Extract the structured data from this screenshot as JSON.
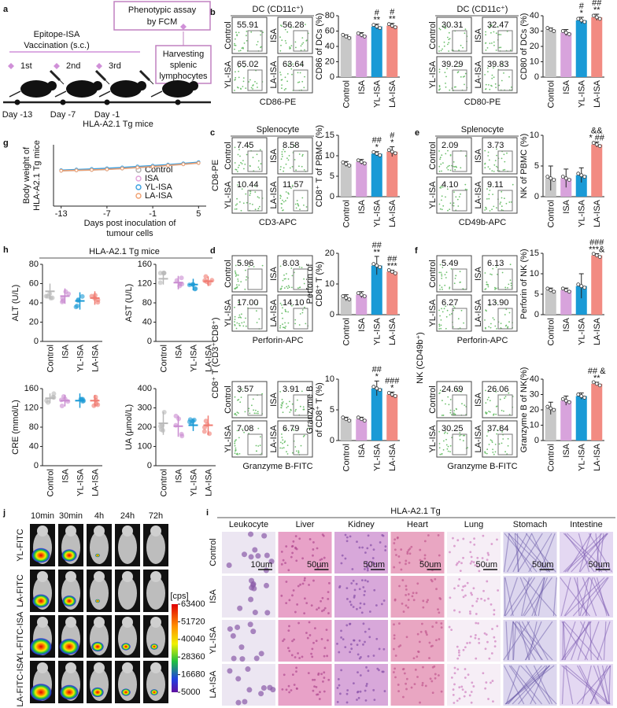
{
  "a": {
    "label": "a",
    "box1": [
      "Phenotypic assay",
      "by FCM"
    ],
    "vaccination": [
      "Epitope-ISA",
      "Vaccination (s.c.)"
    ],
    "box2": [
      "Harvesting",
      "splenic",
      "lymphocytes"
    ],
    "doses": [
      "1st",
      "2nd",
      "3rd"
    ],
    "days": [
      "Day -13",
      "Day -7",
      "Day -1"
    ],
    "mice": "HLA-A2.1 Tg mice"
  },
  "flows": [
    {
      "label": "b",
      "title": "DC (CD11c⁺)",
      "groups": [
        "Control",
        "ISA",
        "YL-ISA",
        "LA-ISA"
      ],
      "percent": [
        "55.91",
        "56.28",
        "65.02",
        "63.64"
      ],
      "xlabel": "CD86-PE"
    },
    {
      "title": "DC (CD11c⁺)",
      "groups": [
        "Control",
        "ISA",
        "YL-ISA",
        "LA-ISA"
      ],
      "percent": [
        "30.31",
        "32.47",
        "39.29",
        "39.83"
      ],
      "xlabel": "CD80-PE"
    },
    {
      "label": "c",
      "title": "Splenocyte",
      "ylabel": "CD8-PE",
      "groups": [
        "Control",
        "ISA",
        "YL-ISA",
        "LA-ISA"
      ],
      "percent": [
        "7.45",
        "8.58",
        "10.44",
        "11.57"
      ],
      "xlabel": "CD3-APC"
    },
    {
      "label": "e",
      "title": "Splenocyte",
      "groups": [
        "Control",
        "ISA",
        "YL-ISA",
        "LA-ISA"
      ],
      "percent": [
        "2.09",
        "3.73",
        "4.10",
        "9.11"
      ],
      "xlabel": "CD49b-APC"
    },
    {
      "label": "d",
      "ylabel": "CD8⁺ T (CD3⁺CD8⁺)",
      "groups": [
        "Control",
        "ISA",
        "YL-ISA",
        "LA-ISA"
      ],
      "percent": [
        "5.96",
        "8.03",
        "17.00",
        "14.10"
      ],
      "xlabel": "Perforin-APC"
    },
    {
      "groups": [
        "Control",
        "ISA",
        "YL-ISA",
        "LA-ISA"
      ],
      "percent": [
        "3.57",
        "3.91",
        "7.08",
        "6.79"
      ],
      "xlabel": "Granzyme B-FITC"
    },
    {
      "label": "f",
      "ylabel": "NK (CD49b⁺)",
      "groups": [
        "Control",
        "ISA",
        "YL-ISA",
        "LA-ISA"
      ],
      "percent": [
        "5.49",
        "6.13",
        "6.27",
        "13.90"
      ],
      "xlabel": "Perforin-APC"
    },
    {
      "groups": [
        "Control",
        "ISA",
        "YL-ISA",
        "LA-ISA"
      ],
      "percent": [
        "24.69",
        "26.06",
        "30.25",
        "37.84"
      ],
      "xlabel": "Granzyme B-FITC"
    }
  ],
  "bars": [
    {
      "type": "bar",
      "ylabel": [
        "CD86 of DCs (%)"
      ],
      "categories": [
        "Control",
        "ISA",
        "YL-ISA",
        "LA-ISA"
      ],
      "values": [
        53,
        55,
        66,
        67
      ],
      "errors": [
        2,
        3,
        3,
        3
      ],
      "ylim": [
        0,
        80
      ],
      "yticks": [
        0,
        20,
        40,
        60,
        80
      ],
      "colors": [
        "#c8c8c8",
        "#d8a3dc",
        "#1a9ad6",
        "#f28b82"
      ],
      "sig": [
        [],
        [],
        [
          "#",
          "**"
        ],
        [
          "#",
          "**"
        ]
      ]
    },
    {
      "type": "bar",
      "ylabel": [
        "CD80 of DCs (%)"
      ],
      "categories": [
        "Control",
        "ISA",
        "YL-ISA",
        "LA-ISA"
      ],
      "values": [
        31,
        29,
        37,
        39
      ],
      "errors": [
        1,
        2,
        2,
        2
      ],
      "ylim": [
        0,
        40
      ],
      "yticks": [
        0,
        10,
        20,
        30,
        40
      ],
      "colors": [
        "#c8c8c8",
        "#d8a3dc",
        "#1a9ad6",
        "#f28b82"
      ],
      "sig": [
        [],
        [],
        [
          "#",
          "*"
        ],
        [
          "##",
          "**"
        ]
      ]
    },
    {
      "type": "bar",
      "ylabel": [
        "CD8⁺ T of PBMC (%)"
      ],
      "categories": [
        "Control",
        "ISA",
        "YL-ISA",
        "LA-ISA"
      ],
      "values": [
        8,
        8.5,
        10.5,
        11
      ],
      "errors": [
        0.6,
        0.6,
        0.5,
        1.2
      ],
      "ylim": [
        0,
        15
      ],
      "yticks": [
        0,
        5,
        10,
        15
      ],
      "colors": [
        "#c8c8c8",
        "#d8a3dc",
        "#1a9ad6",
        "#f28b82"
      ],
      "sig": [
        [],
        [],
        [
          "##",
          "*"
        ],
        [
          "#",
          "*"
        ]
      ]
    },
    {
      "type": "bar",
      "ylabel": [
        "NK of PBMC (%)"
      ],
      "categories": [
        "Control",
        "ISA",
        "YL-ISA",
        "LA-ISA"
      ],
      "values": [
        3,
        3,
        3.5,
        8.5
      ],
      "errors": [
        2,
        1.5,
        1.2,
        0.4
      ],
      "ylim": [
        0,
        10
      ],
      "yticks": [
        0,
        5,
        10
      ],
      "colors": [
        "#c8c8c8",
        "#d8a3dc",
        "#1a9ad6",
        "#f28b82"
      ],
      "sig": [
        [],
        [],
        [],
        [
          "&&",
          "* ##"
        ]
      ]
    },
    {
      "type": "bar",
      "ylabel": [
        "Perforin of",
        "CD8⁺ T (%)"
      ],
      "categories": [
        "Control",
        "ISA",
        "YL-ISA",
        "LA-ISA"
      ],
      "values": [
        5.5,
        6.5,
        16,
        14
      ],
      "errors": [
        1,
        1,
        3,
        0.5
      ],
      "ylim": [
        0,
        20
      ],
      "yticks": [
        0,
        10,
        20
      ],
      "colors": [
        "#c8c8c8",
        "#d8a3dc",
        "#1a9ad6",
        "#f28b82"
      ],
      "sig": [
        [],
        [],
        [
          "##",
          "**"
        ],
        [
          "##",
          "***"
        ]
      ]
    },
    {
      "type": "bar",
      "ylabel": [
        "Granzyme B",
        "of CD8⁺ T (%)"
      ],
      "categories": [
        "Control",
        "ISA",
        "YL-ISA",
        "LA-ISA"
      ],
      "values": [
        3.5,
        3.5,
        8.5,
        7.5
      ],
      "errors": [
        0.3,
        0.3,
        1.2,
        0.4
      ],
      "ylim": [
        0,
        10
      ],
      "yticks": [
        0,
        5,
        10
      ],
      "colors": [
        "#c8c8c8",
        "#d8a3dc",
        "#1a9ad6",
        "#f28b82"
      ],
      "sig": [
        [],
        [],
        [
          "##",
          "*"
        ],
        [
          "###",
          "*"
        ]
      ]
    },
    {
      "type": "bar",
      "ylabel": [
        "Perforin of NK (%)"
      ],
      "categories": [
        "Control",
        "ISA",
        "YL-ISA",
        "LA-ISA"
      ],
      "values": [
        6,
        6,
        7,
        14.5
      ],
      "errors": [
        0.5,
        0.5,
        3,
        0.4
      ],
      "ylim": [
        0,
        15
      ],
      "yticks": [
        0,
        5,
        10,
        15
      ],
      "colors": [
        "#c8c8c8",
        "#d8a3dc",
        "#1a9ad6",
        "#f28b82"
      ],
      "sig": [
        [],
        [],
        [],
        [
          "###",
          "***&"
        ]
      ]
    },
    {
      "type": "bar",
      "ylabel": [
        "Granzyme B of NK(%)"
      ],
      "categories": [
        "Control",
        "ISA",
        "YL-ISA",
        "LA-ISA"
      ],
      "values": [
        21,
        26,
        29,
        37
      ],
      "errors": [
        4,
        3,
        2,
        1
      ],
      "ylim": [
        0,
        40
      ],
      "yticks": [
        0,
        10,
        20,
        30,
        40
      ],
      "colors": [
        "#c8c8c8",
        "#d8a3dc",
        "#1a9ad6",
        "#f28b82"
      ],
      "sig": [
        [],
        [],
        [],
        [
          "## &",
          "**"
        ]
      ]
    }
  ],
  "g": {
    "label": "g",
    "type": "line",
    "ylabel": [
      "Body weight of",
      "HLA-A2.1 Tg mice"
    ],
    "xlabel": [
      "Days post inoculation of",
      "tumour cells"
    ],
    "x": [
      -13,
      -11,
      -9,
      -7,
      -5,
      -3,
      -1,
      1,
      3,
      5
    ],
    "xlim": [
      -14,
      6
    ],
    "xticks": [
      -13,
      -7,
      -1,
      5
    ],
    "ylim": [
      0,
      30
    ],
    "series": [
      {
        "name": "Control",
        "color": "#b0b0b0",
        "values": [
          17.2,
          17.4,
          17.6,
          17.9,
          18.3,
          18.8,
          19.2,
          19.8,
          20.4,
          21.0
        ]
      },
      {
        "name": "ISA",
        "color": "#e0a0d8",
        "values": [
          17.4,
          17.6,
          17.9,
          18.1,
          18.6,
          19.0,
          19.5,
          20.0,
          20.6,
          21.2
        ]
      },
      {
        "name": "YL-ISA",
        "color": "#3aa0e0",
        "values": [
          17.6,
          17.9,
          18.2,
          18.5,
          18.9,
          19.4,
          19.8,
          20.3,
          20.9,
          21.5
        ]
      },
      {
        "name": "LA-ISA",
        "color": "#f0a070",
        "values": [
          17.3,
          17.5,
          17.7,
          18.0,
          18.4,
          18.9,
          19.3,
          19.9,
          20.5,
          21.1
        ]
      }
    ]
  },
  "h": {
    "label": "h",
    "title": "HLA-A2.1 Tg mice",
    "colors": [
      "#b8b8b8",
      "#c98bd0",
      "#1a9ad6",
      "#f07a70"
    ],
    "plots": [
      {
        "type": "dot",
        "ylabel": "ALT (U/L)",
        "categories": [
          "Control",
          "ISA",
          "YL-ISA",
          "LA-ISA"
        ],
        "means": [
          52,
          47,
          42,
          45
        ],
        "sd": [
          8,
          8,
          9,
          7
        ],
        "ylim": [
          0,
          80
        ],
        "yticks": [
          0,
          20,
          40,
          60,
          80
        ]
      },
      {
        "type": "dot",
        "ylabel": "AST (U/L)",
        "categories": [
          "Control",
          "ISA",
          "YL-ISA",
          "LA-ISA"
        ],
        "means": [
          130,
          122,
          118,
          125
        ],
        "sd": [
          12,
          14,
          12,
          10
        ],
        "ylim": [
          0,
          160
        ],
        "yticks": [
          0,
          40,
          80,
          120,
          160
        ]
      },
      {
        "type": "dot",
        "ylabel": "CRE (mmol/L)",
        "categories": [
          "Control",
          "ISA",
          "YL-ISA",
          "LA-ISA"
        ],
        "means": [
          140,
          135,
          135,
          135
        ],
        "sd": [
          10,
          12,
          15,
          12
        ],
        "ylim": [
          0,
          160
        ],
        "yticks": [
          0,
          40,
          80,
          120,
          160
        ]
      },
      {
        "type": "dot",
        "ylabel": "UA (μmol/L)",
        "categories": [
          "Control",
          "ISA",
          "YL-ISA",
          "LA-ISA"
        ],
        "means": [
          220,
          205,
          210,
          210
        ],
        "sd": [
          60,
          55,
          30,
          50
        ],
        "ylim": [
          0,
          400
        ],
        "yticks": [
          0,
          100,
          200,
          300,
          400
        ]
      }
    ]
  },
  "j": {
    "label": "j",
    "times": [
      "10min",
      "30min",
      "4h",
      "24h",
      "72h"
    ],
    "rows": [
      "YL-FITC",
      "LA-FITC",
      "YL-FITC-ISA",
      "LA-FITC-ISA"
    ],
    "colorbar_unit": "[cps]",
    "colorbar_ticks": [
      63400,
      51720,
      40040,
      28360,
      16680,
      5000
    ]
  },
  "i": {
    "label": "i",
    "title": "HLA-A2.1 Tg",
    "columns": [
      "Leukocyte",
      "Liver",
      "Kidney",
      "Heart",
      "Lung",
      "Stomach",
      "Intestine"
    ],
    "rows": [
      "Control",
      "ISA",
      "YL-ISA",
      "LA-ISA"
    ],
    "scale_labels": [
      "10um",
      "50um",
      "50um",
      "50um",
      "50um",
      "50um",
      "50um"
    ]
  }
}
